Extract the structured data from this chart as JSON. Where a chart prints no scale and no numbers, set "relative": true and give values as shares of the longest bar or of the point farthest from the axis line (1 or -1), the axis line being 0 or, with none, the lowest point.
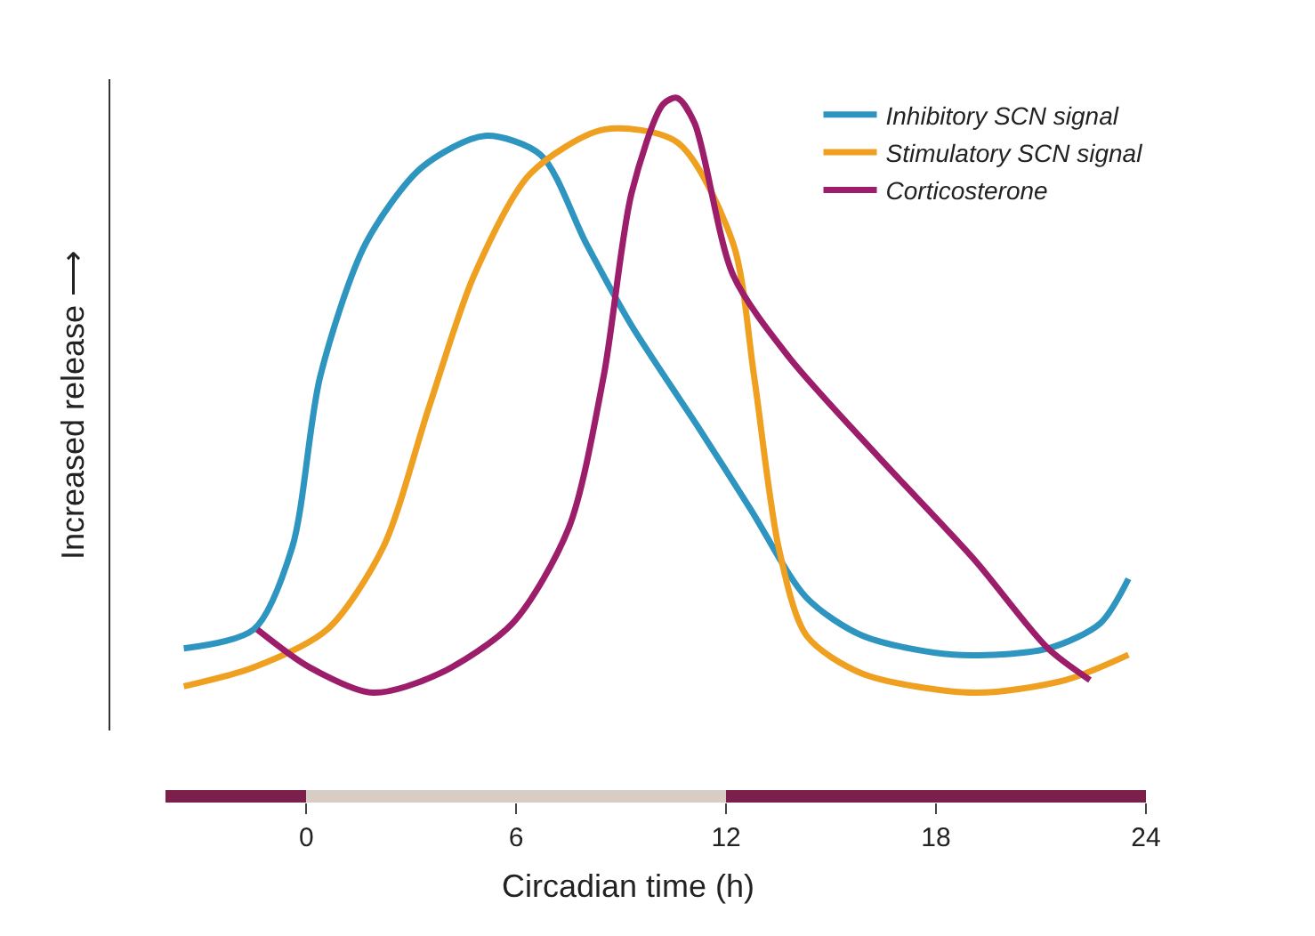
{
  "chart_data": {
    "type": "line",
    "relative": true,
    "xlabel": "Circadian time (h)",
    "ylabel": "Increased release ⟶",
    "xlim": [
      -5.6,
      24
    ],
    "xticks": [
      0,
      6,
      12,
      18,
      24
    ],
    "tick_labels": "x",
    "legend": "top right",
    "grid": false,
    "marker": "none",
    "line_style": "solid",
    "series": [
      {
        "name": "Inhibitory SCN signal",
        "color": "#2e95c0",
        "x": [
          -3.5,
          -1.5,
          -0.4,
          0.4,
          1.7,
          3.3,
          5.1,
          6.7,
          8,
          9.3,
          11.2,
          12.7,
          14.3,
          15.9,
          18.5,
          21.2,
          22.7,
          23.5
        ],
        "values": [
          0.13,
          0.16,
          0.29,
          0.56,
          0.77,
          0.89,
          0.94,
          0.91,
          0.77,
          0.64,
          0.48,
          0.35,
          0.21,
          0.15,
          0.12,
          0.13,
          0.17,
          0.24
        ]
      },
      {
        "name": "Stimulatory SCN signal",
        "color": "#f0a020",
        "x": [
          -3.5,
          -1.5,
          0.6,
          2.2,
          3.5,
          4.8,
          6.4,
          8.5,
          10.6,
          12.2,
          12.8,
          13.5,
          14.3,
          15.9,
          19.1,
          21.7,
          23.5
        ],
        "values": [
          0.07,
          0.1,
          0.16,
          0.29,
          0.51,
          0.72,
          0.88,
          0.95,
          0.93,
          0.77,
          0.56,
          0.29,
          0.15,
          0.09,
          0.06,
          0.08,
          0.12
        ]
      },
      {
        "name": "Corticosterone",
        "color": "#9c1d6a",
        "x": [
          -1.4,
          0.1,
          1.9,
          3.8,
          5.9,
          7.5,
          8.5,
          9.3,
          10.2,
          10.6,
          11.1,
          12.2,
          13.8,
          16.4,
          19.1,
          21.2,
          22.4
        ],
        "values": [
          0.16,
          0.1,
          0.06,
          0.09,
          0.17,
          0.32,
          0.56,
          0.85,
          0.99,
          1,
          0.96,
          0.72,
          0.59,
          0.43,
          0.27,
          0.13,
          0.08
        ]
      }
    ]
  }
}
